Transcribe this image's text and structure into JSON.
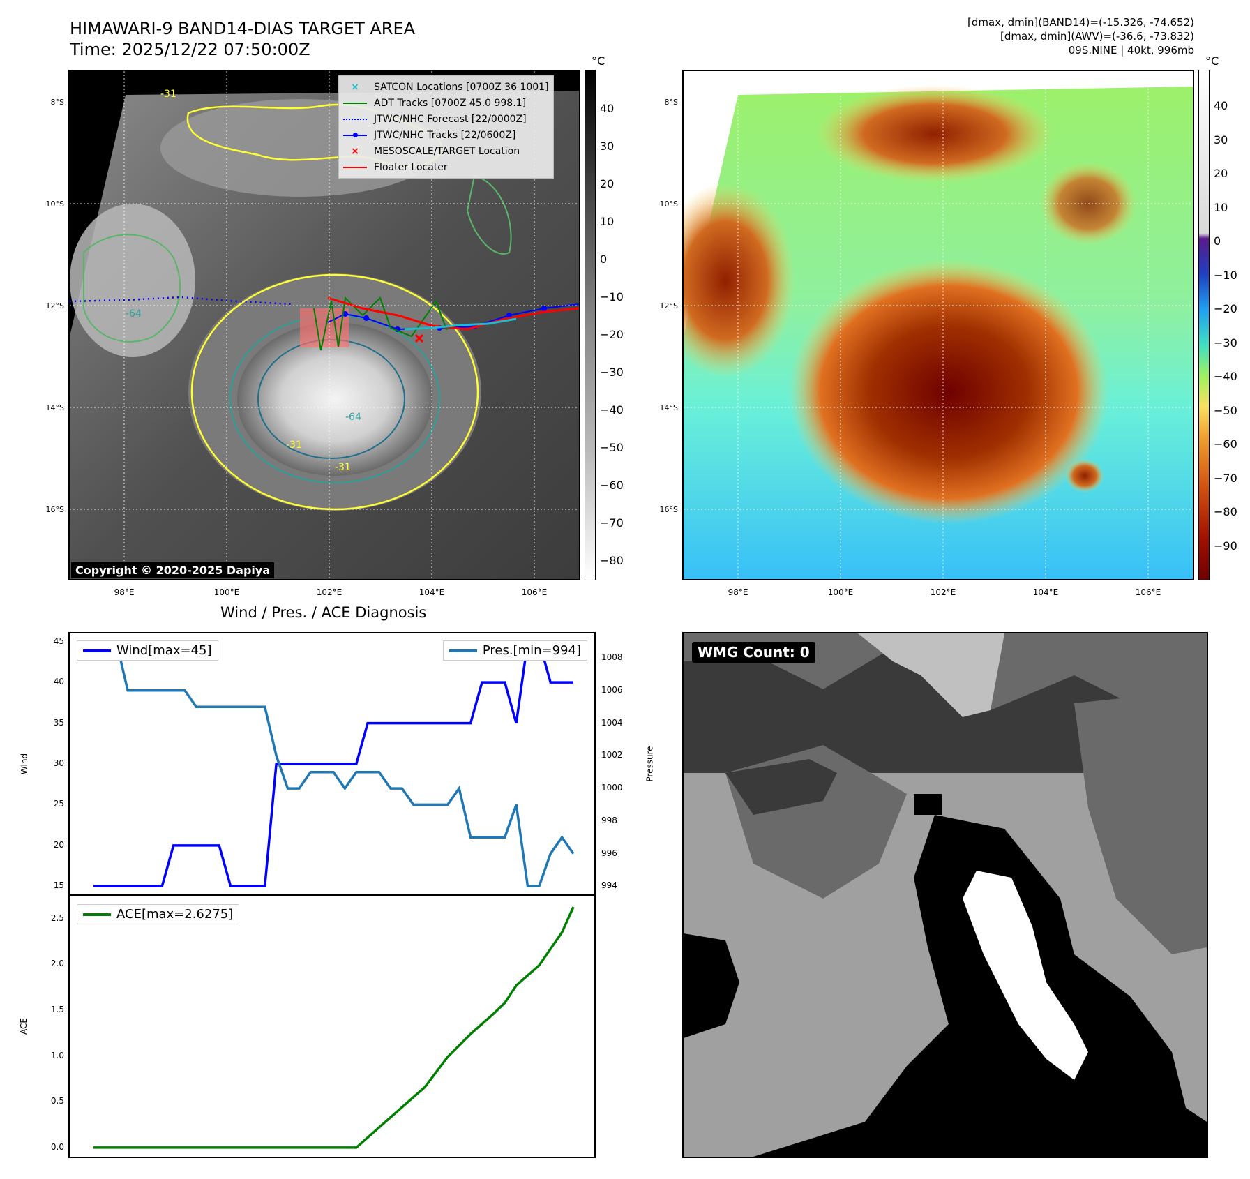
{
  "header": {
    "title_line1": "HIMAWARI-9 BAND14-DIAS TARGET AREA",
    "title_line2": "Time: 2025/12/22 07:50:00Z",
    "info_line1": "[dmax, dmin](BAND14)=(-15.326, -74.652)",
    "info_line2": "[dmax, dmin](AWV)=(-36.6, -73.832)",
    "info_line3": "09S.NINE | 40kt, 996mb"
  },
  "map": {
    "lat_ticks": [
      "8°S",
      "10°S",
      "12°S",
      "14°S",
      "16°S"
    ],
    "lon_ticks": [
      "98°E",
      "100°E",
      "102°E",
      "104°E",
      "106°E"
    ],
    "contour_labels": [
      "-31",
      "-64",
      "-31",
      "-64",
      "-31"
    ],
    "copyright": "Copyright © 2020-2025 Dapiya"
  },
  "legend": {
    "satcon": "SATCON Locations [0700Z 36 1001]",
    "adt": "ADT Tracks [0700Z 45.0 998.1]",
    "jtwc_forecast": "JTWC/NHC Forecast [22/0000Z]",
    "jtwc_tracks": "JTWC/NHC Tracks [22/0600Z]",
    "mesoscale": "MESOSCALE/TARGET Location",
    "floater": "Floater Locater"
  },
  "colorbar_left": {
    "unit": "°C",
    "ticks": [
      "40",
      "30",
      "20",
      "10",
      "0",
      "−10",
      "−20",
      "−30",
      "−40",
      "−50",
      "−60",
      "−70",
      "−80"
    ]
  },
  "colorbar_right": {
    "unit": "°C",
    "ticks": [
      "40",
      "30",
      "20",
      "10",
      "0",
      "−10",
      "−20",
      "−30",
      "−40",
      "−50",
      "−60",
      "−70",
      "−80",
      "−90"
    ]
  },
  "wmg": {
    "label": "WMG Count: 0"
  },
  "colors": {
    "wind": "#0000ff",
    "pressure": "#1f77b4",
    "ace": "#008000",
    "satcon": "#17becf",
    "adt": "#008000",
    "jtwc": "#0000ff",
    "mesoscale": "#ff0000",
    "floater": "#ff0000"
  },
  "chart_data": [
    {
      "type": "line",
      "title": "Wind / Pres. / ACE Diagnosis",
      "ylabel": "Wind",
      "ylim": [
        14,
        46
      ],
      "yticks": [
        "45",
        "40",
        "35",
        "30",
        "25",
        "20",
        "15"
      ],
      "legend_label": "Wind[max=45]",
      "x": [
        0,
        1,
        2,
        3,
        4,
        5,
        6,
        7,
        8,
        9,
        10,
        11,
        12,
        13,
        14,
        15,
        16,
        17,
        18,
        19,
        20,
        21,
        22,
        23,
        24,
        25,
        26,
        27,
        28,
        29,
        30,
        31,
        32,
        33,
        34,
        35,
        36,
        37,
        38,
        39,
        40,
        41,
        42
      ],
      "values": [
        15,
        15,
        15,
        15,
        15,
        15,
        15,
        20,
        20,
        20,
        20,
        20,
        15,
        15,
        15,
        15,
        30,
        30,
        30,
        30,
        30,
        30,
        30,
        30,
        35,
        35,
        35,
        35,
        35,
        35,
        35,
        35,
        35,
        35,
        40,
        40,
        40,
        35,
        45,
        45,
        40,
        40,
        40
      ]
    },
    {
      "type": "line",
      "ylabel": "Pressure",
      "ylim": [
        993.5,
        1009.5
      ],
      "yticks": [
        "1008",
        "1006",
        "1004",
        "1002",
        "1000",
        "998",
        "996",
        "994"
      ],
      "legend_label": "Pres.[min=994]",
      "x": [
        0,
        1,
        2,
        3,
        4,
        5,
        6,
        7,
        8,
        9,
        10,
        11,
        12,
        13,
        14,
        15,
        16,
        17,
        18,
        19,
        20,
        21,
        22,
        23,
        24,
        25,
        26,
        27,
        28,
        29,
        30,
        31,
        32,
        33,
        34,
        35,
        36,
        37,
        38,
        39,
        40,
        41,
        42
      ],
      "values": [
        1009,
        1009,
        1009,
        1006,
        1006,
        1006,
        1006,
        1006,
        1006,
        1005,
        1005,
        1005,
        1005,
        1005,
        1005,
        1005,
        1002,
        1000,
        1000,
        1001,
        1001,
        1001,
        1000,
        1001,
        1001,
        1001,
        1000,
        1000,
        999,
        999,
        999,
        999,
        1000,
        997,
        997,
        997,
        997,
        999,
        994,
        994,
        996,
        997,
        996
      ]
    },
    {
      "type": "line",
      "ylabel": "ACE",
      "ylim": [
        -0.1,
        2.75
      ],
      "yticks": [
        "2.5",
        "2.0",
        "1.5",
        "1.0",
        "0.5",
        "0.0"
      ],
      "legend_label": "ACE[max=2.6275]",
      "x": [
        0,
        23,
        26,
        29,
        31,
        33,
        35,
        36,
        37,
        39,
        41,
        42
      ],
      "values": [
        0,
        0,
        0.33,
        0.66,
        0.99,
        1.24,
        1.46,
        1.58,
        1.77,
        1.99,
        2.35,
        2.6275
      ]
    }
  ]
}
